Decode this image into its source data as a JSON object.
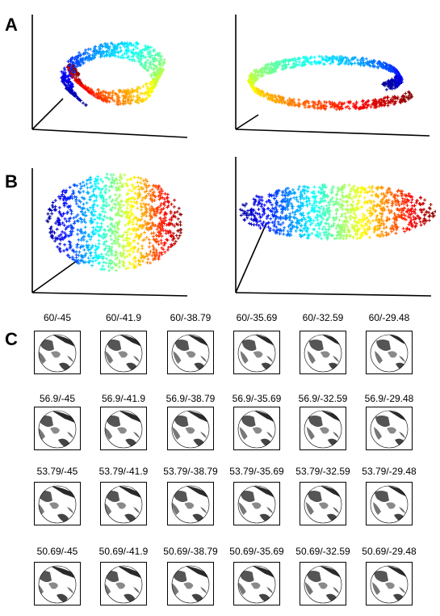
{
  "panels": {
    "a_label": "A",
    "b_label": "B",
    "c_label": "C"
  },
  "colormap": [
    "#00008f",
    "#0000ff",
    "#0080ff",
    "#00ffff",
    "#80ff80",
    "#ffff00",
    "#ff8000",
    "#ff0000",
    "#800000"
  ],
  "grid_rows": [
    {
      "labels": [
        "60/-45",
        "60/-41.9",
        "60/-38.79",
        "60/-35.69",
        "60/-32.59",
        "60/-29.48"
      ]
    },
    {
      "labels": [
        "56.9/-45",
        "56.9/-41.9",
        "56.9/-38.79",
        "56.9/-35.69",
        "56.9/-32.59",
        "56.9/-29.48"
      ]
    },
    {
      "labels": [
        "53.79/-45",
        "53.79/-41.9",
        "53.79/-38.79",
        "53.79/-35.69",
        "53.79/-32.59",
        "53.79/-29.48"
      ]
    },
    {
      "labels": [
        "50.69/-45",
        "50.69/-41.9",
        "50.69/-38.79",
        "50.69/-35.69",
        "50.69/-32.59",
        "50.69/-29.48"
      ]
    }
  ]
}
